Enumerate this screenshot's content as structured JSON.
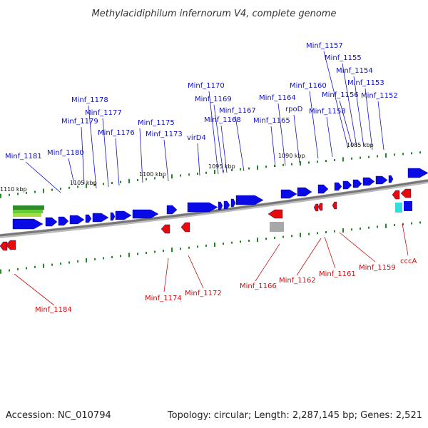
{
  "title": "Methylacidiphilum infernorum V4, complete genome",
  "footer": {
    "accession": "Accession: NC_010794",
    "summary": "Topology: circular; Length: 2,287,145 bp; Genes: 2,521"
  },
  "colors": {
    "forward_gene": "#0a0ae6",
    "reverse_gene": "#e60a0a",
    "label_forward": "#1010c8",
    "label_reverse": "#c81010",
    "rna_gene": "#a8a8a8",
    "cyan_feature": "#33dddd",
    "backbone": "#777777",
    "tick": "#228822",
    "rrna_cluster": [
      "#2e8b2e",
      "#66cc33",
      "#aadd44"
    ]
  },
  "ruler": [
    "1110 kbp",
    "1105 kbp",
    "1100 kbp",
    "1095 kbp",
    "1090 kbp",
    "1085 kbp"
  ],
  "forward_labels": [
    "Minf_1181",
    "Minf_1180",
    "Minf_1179",
    "Minf_1178",
    "Minf_1177",
    "Minf_1176",
    "Minf_1175",
    "Minf_1173",
    "virD4",
    "Minf_1170",
    "Minf_1169",
    "Minf_1168",
    "Minf_1167",
    "Minf_1165",
    "Minf_1164",
    "rpoD",
    "Minf_1160",
    "Minf_1158",
    "Minf_1157",
    "Minf_1156",
    "Minf_1155",
    "Minf_1154",
    "Minf_1153",
    "Minf_1152"
  ],
  "reverse_labels": [
    "Minf_1184",
    "Minf_1174",
    "Minf_1172",
    "Minf_1166",
    "Minf_1162",
    "Minf_1161",
    "Minf_1159",
    "cccA"
  ]
}
